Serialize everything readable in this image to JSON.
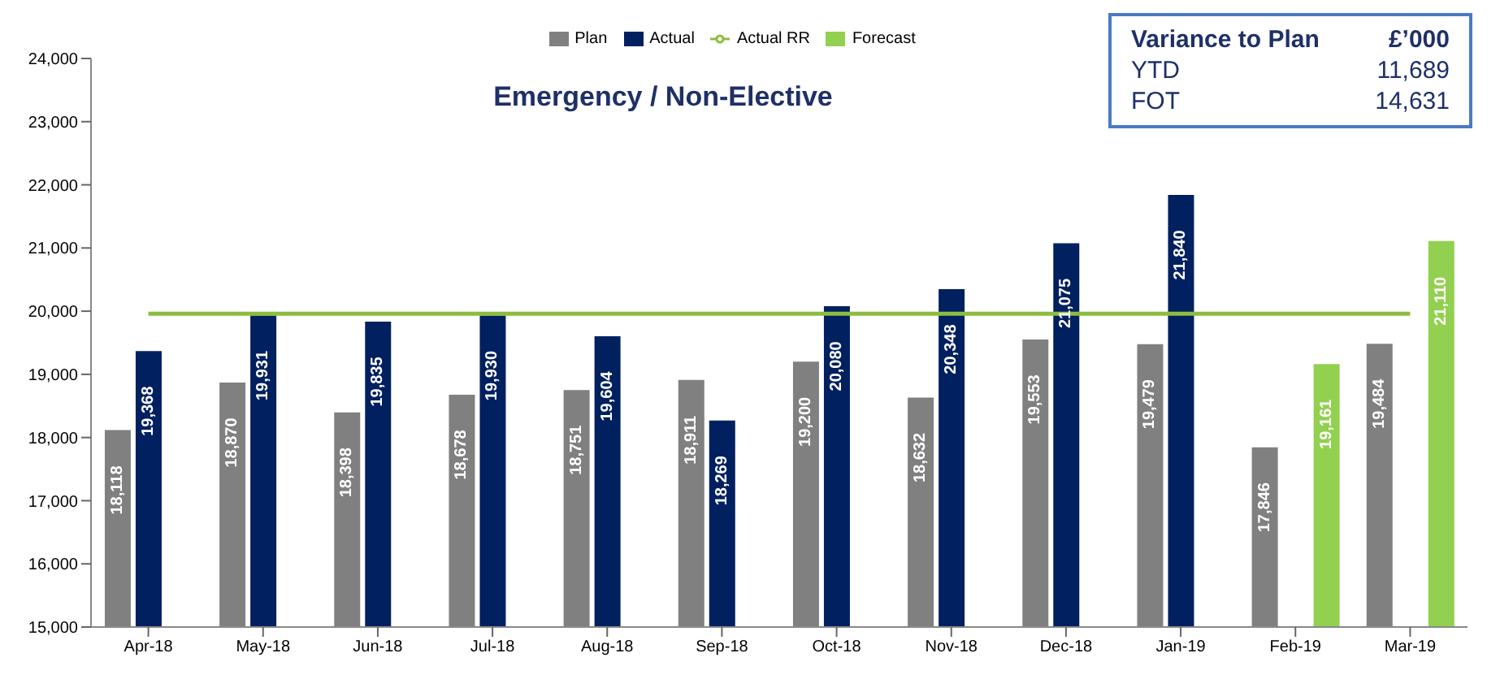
{
  "chart_data": {
    "type": "bar",
    "title": "Emergency / Non-Elective",
    "categories": [
      "Apr-18",
      "May-18",
      "Jun-18",
      "Jul-18",
      "Aug-18",
      "Sep-18",
      "Oct-18",
      "Nov-18",
      "Dec-18",
      "Jan-19",
      "Feb-19",
      "Mar-19"
    ],
    "series": [
      {
        "name": "Plan",
        "color": "#808080",
        "values": [
          18118,
          18870,
          18398,
          18678,
          18751,
          18911,
          19200,
          18632,
          19553,
          19479,
          17846,
          19484
        ],
        "value_labels": [
          "18,118",
          "18,870",
          "18,398",
          "18,678",
          "18,751",
          "18,911",
          "19,200",
          "18,632",
          "19,553",
          "19,479",
          "17,846",
          "19,484"
        ]
      },
      {
        "name": "Actual",
        "color": "#002060",
        "values": [
          19368,
          19931,
          19835,
          19930,
          19604,
          18269,
          20080,
          20348,
          21075,
          21840,
          null,
          null
        ],
        "value_labels": [
          "19,368",
          "19,931",
          "19,835",
          "19,930",
          "19,604",
          "18,269",
          "20,080",
          "20,348",
          "21,075",
          "21,840",
          null,
          null
        ]
      },
      {
        "name": "Actual RR",
        "type": "line",
        "color": "#8cbd3f",
        "values": [
          19960,
          19960,
          19960,
          19960,
          19960,
          19960,
          19960,
          19960,
          19960,
          19960,
          19960,
          19960
        ]
      },
      {
        "name": "Forecast",
        "color": "#92d050",
        "values": [
          null,
          null,
          null,
          null,
          null,
          null,
          null,
          null,
          null,
          null,
          19161,
          21110
        ],
        "value_labels": [
          null,
          null,
          null,
          null,
          null,
          null,
          null,
          null,
          null,
          null,
          "19,161",
          "21,110"
        ]
      }
    ],
    "ylim": [
      15000,
      24000
    ],
    "yticks": [
      {
        "value": 15000,
        "label": "15,000"
      },
      {
        "value": 16000,
        "label": "16,000"
      },
      {
        "value": 17000,
        "label": "17,000"
      },
      {
        "value": 18000,
        "label": "18,000"
      },
      {
        "value": 19000,
        "label": "19,000"
      },
      {
        "value": 20000,
        "label": "20,000"
      },
      {
        "value": 21000,
        "label": "21,000"
      },
      {
        "value": 22000,
        "label": "22,000"
      },
      {
        "value": 23000,
        "label": "23,000"
      },
      {
        "value": 24000,
        "label": "24,000"
      }
    ],
    "legend": "top",
    "annotations": [
      "Variance to Plan",
      "£’000",
      "YTD",
      "11,689",
      "FOT",
      "14,631"
    ]
  }
}
